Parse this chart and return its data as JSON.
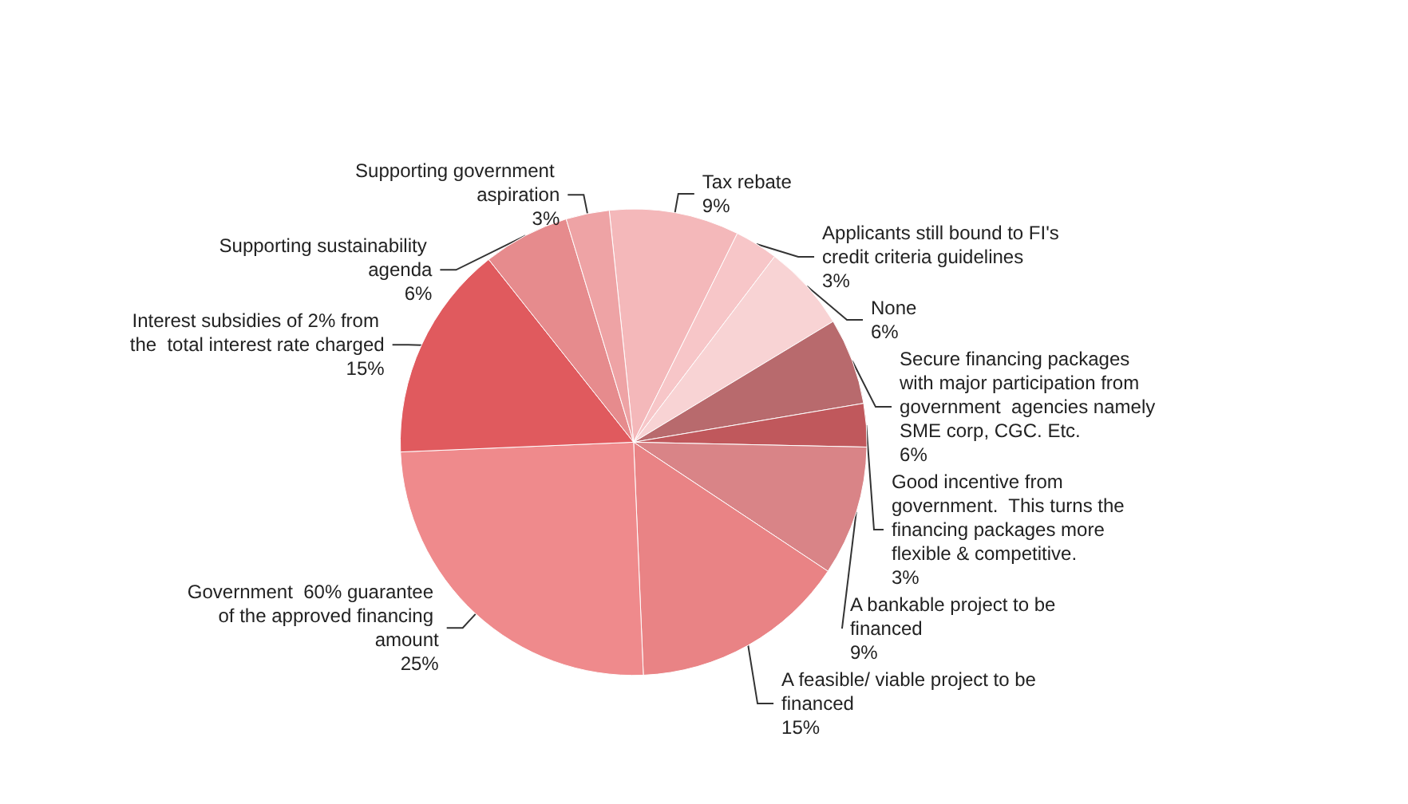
{
  "chart_data": {
    "type": "pie",
    "categories": [
      "Tax rebate",
      "Applicants still bound to FI's credit criteria guidelines",
      "None",
      "Secure financing packages with major participation from government  agencies namely SME corp, CGC. Etc.",
      "Good incentive from government.  This turns the financing packages more flexible & competitive.",
      "A bankable project to be financed",
      "A feasible/ viable project to be financed",
      "Government  60% guarantee of the approved financing amount",
      "Interest subsidies of 2% from the  total interest rate charged",
      "Supporting sustainability agenda",
      "Supporting government aspiration"
    ],
    "values": [
      9,
      3,
      6,
      6,
      3,
      9,
      15,
      25,
      15,
      6,
      3
    ],
    "value_labels": [
      "9%",
      "3%",
      "6%",
      "6%",
      "3%",
      "9%",
      "15%",
      "25%",
      "15%",
      "6%",
      "3%"
    ],
    "colors": [
      "#f4b8ba",
      "#f7c6c8",
      "#f8d3d4",
      "#b86a6d",
      "#c0585c",
      "#d98487",
      "#e98385",
      "#ef8a8c",
      "#e05a5e",
      "#e68b8d",
      "#eea3a5"
    ],
    "legend": false
  }
}
